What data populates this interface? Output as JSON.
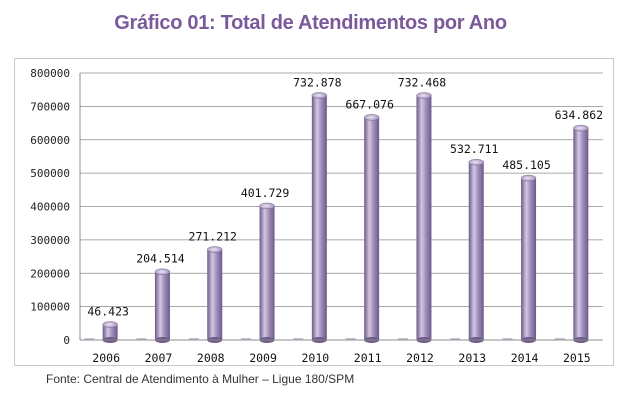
{
  "title": "Gráfico 01: Total de Atendimentos por Ano",
  "source": "Fonte: Central de Atendimento à Mulher – Ligue 180/SPM",
  "colors": {
    "bar": "#9c8ab8",
    "bar_light": "#d3c8e2",
    "bar_dark": "#6c5a88",
    "title": "#7a5a9a"
  },
  "chart_data": {
    "type": "bar",
    "title": "Gráfico 01: Total de Atendimentos por Ano",
    "xlabel": "",
    "ylabel": "",
    "categories": [
      "2006",
      "2007",
      "2008",
      "2009",
      "2010",
      "2011",
      "2012",
      "2013",
      "2014",
      "2015"
    ],
    "values": [
      46423,
      204514,
      271212,
      401729,
      732878,
      667076,
      732468,
      532711,
      485105,
      634862
    ],
    "data_labels": [
      "46.423",
      "204.514",
      "271.212",
      "401.729",
      "732.878",
      "667.076",
      "732.468",
      "532.711",
      "485.105",
      "634.862"
    ],
    "ylim": [
      0,
      800000
    ],
    "yticks": [
      0,
      100000,
      200000,
      300000,
      400000,
      500000,
      600000,
      700000,
      800000
    ],
    "ytick_labels": [
      "0",
      "100000",
      "200000",
      "300000",
      "400000",
      "500000",
      "600000",
      "700000",
      "800000"
    ],
    "grid": true,
    "legend": "none"
  }
}
